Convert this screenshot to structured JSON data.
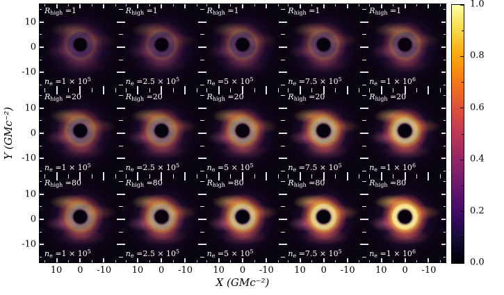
{
  "figure": {
    "x_axis_title": "X (GMc⁻²)",
    "y_axis_title": "Y (GMc⁻²)",
    "x_ticks": [
      "10",
      "0",
      "-10"
    ],
    "y_ticks": [
      "10",
      "0",
      "-10"
    ],
    "colorbar": {
      "ticks": [
        "1.0",
        "0.8",
        "0.6",
        "0.4",
        "0.2",
        "0.0"
      ],
      "cmap": "inferno",
      "top_color": "#fcffa4",
      "bottom_color": "#000004"
    }
  },
  "chart_data": {
    "type": "heatmap",
    "description": "3x5 grid of simulated black-hole emission maps (GRMHD images, inferno colormap, normalized intensity)",
    "rows_parameter": "R_high",
    "row_values": [
      1,
      20,
      80
    ],
    "cols_parameter": "n_e",
    "col_values": [
      "1×10⁵",
      "2.5×10⁵",
      "5×10⁵",
      "7.5×10⁵",
      "1×10⁶"
    ],
    "x_range": [
      17,
      -17
    ],
    "y_range": [
      -17,
      17
    ],
    "x_ticks": [
      10,
      0,
      -10
    ],
    "y_ticks": [
      10,
      0,
      -10
    ],
    "colorbar_range": [
      0.0,
      1.0
    ],
    "colorbar_ticks": [
      0.0,
      0.2,
      0.4,
      0.6,
      0.8,
      1.0
    ],
    "xlabel": "X (GMc⁻²)",
    "ylabel": "Y (GMc⁻²)",
    "approx_relative_peak_brightness": [
      [
        0.3,
        0.34,
        0.38,
        0.42,
        0.46
      ],
      [
        0.55,
        0.62,
        0.7,
        0.78,
        0.85
      ],
      [
        0.66,
        0.76,
        0.86,
        0.94,
        1.0
      ]
    ]
  },
  "panels": [
    {
      "r_pre": "R",
      "r_sub": "high",
      "r_val": " =1",
      "n_pre": "n",
      "n_sub": "e",
      "n_val": " =1 × 10",
      "n_exp": "5",
      "glow": 0.3
    },
    {
      "r_pre": "R",
      "r_sub": "high",
      "r_val": " =1",
      "n_pre": "n",
      "n_sub": "e",
      "n_val": " =2.5 × 10",
      "n_exp": "5",
      "glow": 0.34
    },
    {
      "r_pre": "R",
      "r_sub": "high",
      "r_val": " =1",
      "n_pre": "n",
      "n_sub": "e",
      "n_val": " =5 × 10",
      "n_exp": "5",
      "glow": 0.38
    },
    {
      "r_pre": "R",
      "r_sub": "high",
      "r_val": " =1",
      "n_pre": "n",
      "n_sub": "e",
      "n_val": " =7.5 × 10",
      "n_exp": "5",
      "glow": 0.42
    },
    {
      "r_pre": "R",
      "r_sub": "high",
      "r_val": " =1",
      "n_pre": "n",
      "n_sub": "e",
      "n_val": " =1 × 10",
      "n_exp": "6",
      "glow": 0.46
    },
    {
      "r_pre": "R",
      "r_sub": "high",
      "r_val": " =20",
      "n_pre": "n",
      "n_sub": "e",
      "n_val": " =1 × 10",
      "n_exp": "5",
      "glow": 0.55
    },
    {
      "r_pre": "R",
      "r_sub": "high",
      "r_val": " =20",
      "n_pre": "n",
      "n_sub": "e",
      "n_val": " =2.5 × 10",
      "n_exp": "5",
      "glow": 0.62
    },
    {
      "r_pre": "R",
      "r_sub": "high",
      "r_val": " =20",
      "n_pre": "n",
      "n_sub": "e",
      "n_val": " =5 × 10",
      "n_exp": "5",
      "glow": 0.7
    },
    {
      "r_pre": "R",
      "r_sub": "high",
      "r_val": " =20",
      "n_pre": "n",
      "n_sub": "e",
      "n_val": " =7.5 × 10",
      "n_exp": "5",
      "glow": 0.78
    },
    {
      "r_pre": "R",
      "r_sub": "high",
      "r_val": " =20",
      "n_pre": "n",
      "n_sub": "e",
      "n_val": " =1 × 10",
      "n_exp": "6",
      "glow": 0.85
    },
    {
      "r_pre": "R",
      "r_sub": "high",
      "r_val": " =80",
      "n_pre": "n",
      "n_sub": "e",
      "n_val": " =1 × 10",
      "n_exp": "5",
      "glow": 0.66
    },
    {
      "r_pre": "R",
      "r_sub": "high",
      "r_val": " =80",
      "n_pre": "n",
      "n_sub": "e",
      "n_val": " =2.5 × 10",
      "n_exp": "5",
      "glow": 0.76
    },
    {
      "r_pre": "R",
      "r_sub": "high",
      "r_val": " =80",
      "n_pre": "n",
      "n_sub": "e",
      "n_val": " =5 × 10",
      "n_exp": "5",
      "glow": 0.86
    },
    {
      "r_pre": "R",
      "r_sub": "high",
      "r_val": " =80",
      "n_pre": "n",
      "n_sub": "e",
      "n_val": " =7.5 × 10",
      "n_exp": "5",
      "glow": 0.94
    },
    {
      "r_pre": "R",
      "r_sub": "high",
      "r_val": " =80",
      "n_pre": "n",
      "n_sub": "e",
      "n_val": " =1 × 10",
      "n_exp": "6",
      "glow": 1.0
    }
  ]
}
